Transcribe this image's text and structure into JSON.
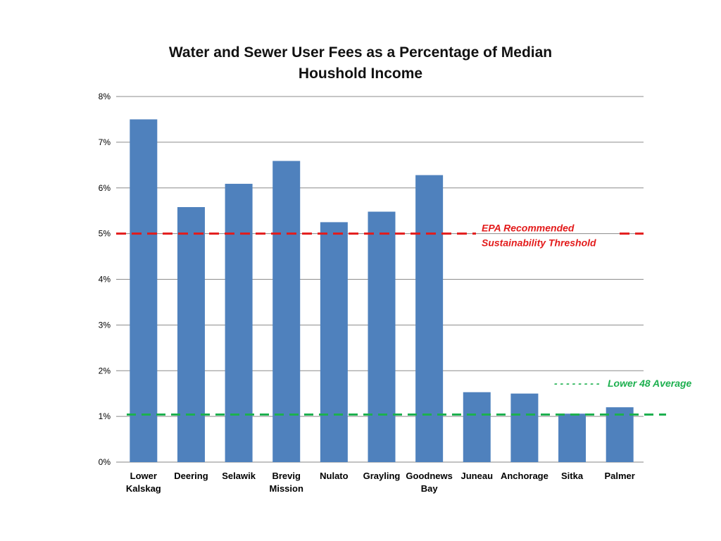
{
  "chart_data": {
    "type": "bar",
    "title_lines": [
      "Water and Sewer User Fees as a Percentage of Median",
      "Houshold Income"
    ],
    "categories": [
      [
        "Lower",
        "Kalskag"
      ],
      [
        "Deering"
      ],
      [
        "Selawik"
      ],
      [
        "Brevig",
        "Mission"
      ],
      [
        "Nulato"
      ],
      [
        "Grayling"
      ],
      [
        "Goodnews",
        "Bay"
      ],
      [
        "Juneau"
      ],
      [
        "Anchorage"
      ],
      [
        "Sitka"
      ],
      [
        "Palmer"
      ]
    ],
    "values": [
      7.5,
      5.58,
      6.09,
      6.59,
      5.25,
      5.48,
      6.28,
      1.53,
      1.5,
      1.06,
      1.2
    ],
    "ylim": [
      0,
      8
    ],
    "y_ticks": [
      {
        "value": 0,
        "label": "0%"
      },
      {
        "value": 1,
        "label": "1%"
      },
      {
        "value": 2,
        "label": "2%"
      },
      {
        "value": 3,
        "label": "3%"
      },
      {
        "value": 4,
        "label": "4%"
      },
      {
        "value": 5,
        "label": "5%"
      },
      {
        "value": 6,
        "label": "6%"
      },
      {
        "value": 7,
        "label": "7%"
      },
      {
        "value": 8,
        "label": "8%"
      }
    ],
    "grid": true,
    "bar_color": "#4F81BD",
    "reference_lines": [
      {
        "name": "epa-threshold",
        "value": 5.0,
        "color": "#E31B1B",
        "label_lines": [
          "EPA Recommended",
          "Sustainability Threshold"
        ]
      },
      {
        "name": "lower-48-average",
        "value": 1.04,
        "color": "#1DB04F",
        "label_prefix": "- - - - - - - -",
        "label_lines": [
          "Lower 48 Average"
        ]
      }
    ]
  }
}
